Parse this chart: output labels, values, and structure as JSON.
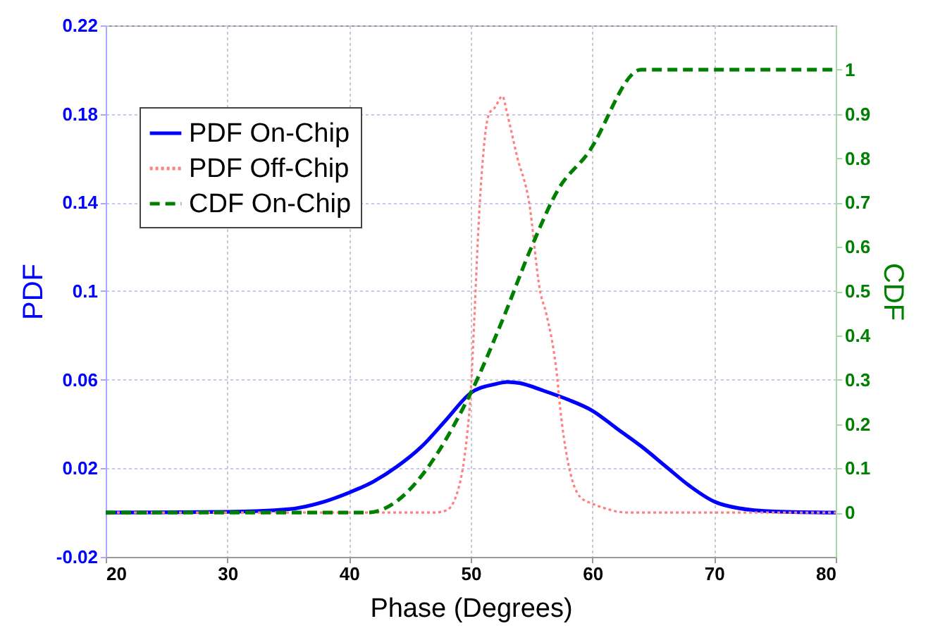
{
  "chart_data": {
    "type": "line",
    "xlabel": "Phase (Degrees)",
    "ylabel": "PDF",
    "y2label": "CDF",
    "xlim": [
      20,
      80
    ],
    "xticks": [
      20,
      30,
      40,
      50,
      60,
      70,
      80
    ],
    "ylim": [
      -0.02,
      0.22
    ],
    "yticks": [
      -0.02,
      0.02,
      0.06,
      0.1,
      0.14,
      0.18,
      0.22
    ],
    "y2lim": [
      -0.1,
      1.1
    ],
    "y2ticks": [
      0,
      0.1,
      0.2,
      0.3,
      0.4,
      0.5,
      0.6,
      0.7,
      0.8,
      0.9,
      1
    ],
    "grid": true,
    "legend": "top left",
    "marker": "none",
    "series": [
      {
        "name": "PDF On-Chip",
        "color": "#0000ff",
        "line_style": "solid",
        "x": [
          20,
          30,
          35,
          38,
          40,
          42,
          44,
          46,
          48,
          50,
          52,
          53,
          54,
          56,
          58,
          60,
          62,
          64,
          66,
          68,
          70,
          72,
          75,
          80
        ],
        "values": [
          0,
          0.0003,
          0.0015,
          0.005,
          0.009,
          0.014,
          0.021,
          0.03,
          0.042,
          0.054,
          0.058,
          0.059,
          0.0585,
          0.055,
          0.051,
          0.046,
          0.038,
          0.03,
          0.021,
          0.012,
          0.005,
          0.002,
          0.0005,
          0
        ]
      },
      {
        "name": "PDF Off-Chip",
        "color": "#ff8080",
        "line_style": "dotted",
        "x": [
          20,
          47,
          48,
          49,
          49.7,
          50,
          50.3,
          50.6,
          51,
          51.5,
          52,
          52.6,
          53,
          53.8,
          54.8,
          55.7,
          56.2,
          57,
          57.5,
          58.1,
          59,
          60,
          61,
          62,
          63,
          80
        ],
        "values": [
          0,
          0,
          0.001,
          0.011,
          0.035,
          0.054,
          0.088,
          0.125,
          0.16,
          0.18,
          0.183,
          0.188,
          0.18,
          0.161,
          0.14,
          0.1,
          0.09,
          0.066,
          0.04,
          0.02,
          0.007,
          0.004,
          0.002,
          0.0005,
          0,
          0
        ]
      },
      {
        "name": "CDF On-Chip",
        "color": "#008000",
        "line_style": "dashed",
        "axis": "y2",
        "x": [
          20,
          41.5,
          50,
          52.6,
          55,
          57.2,
          59.6,
          64,
          80
        ],
        "values": [
          0,
          0,
          0.27,
          0.434,
          0.6,
          0.73,
          0.81,
          1,
          1
        ]
      }
    ]
  }
}
